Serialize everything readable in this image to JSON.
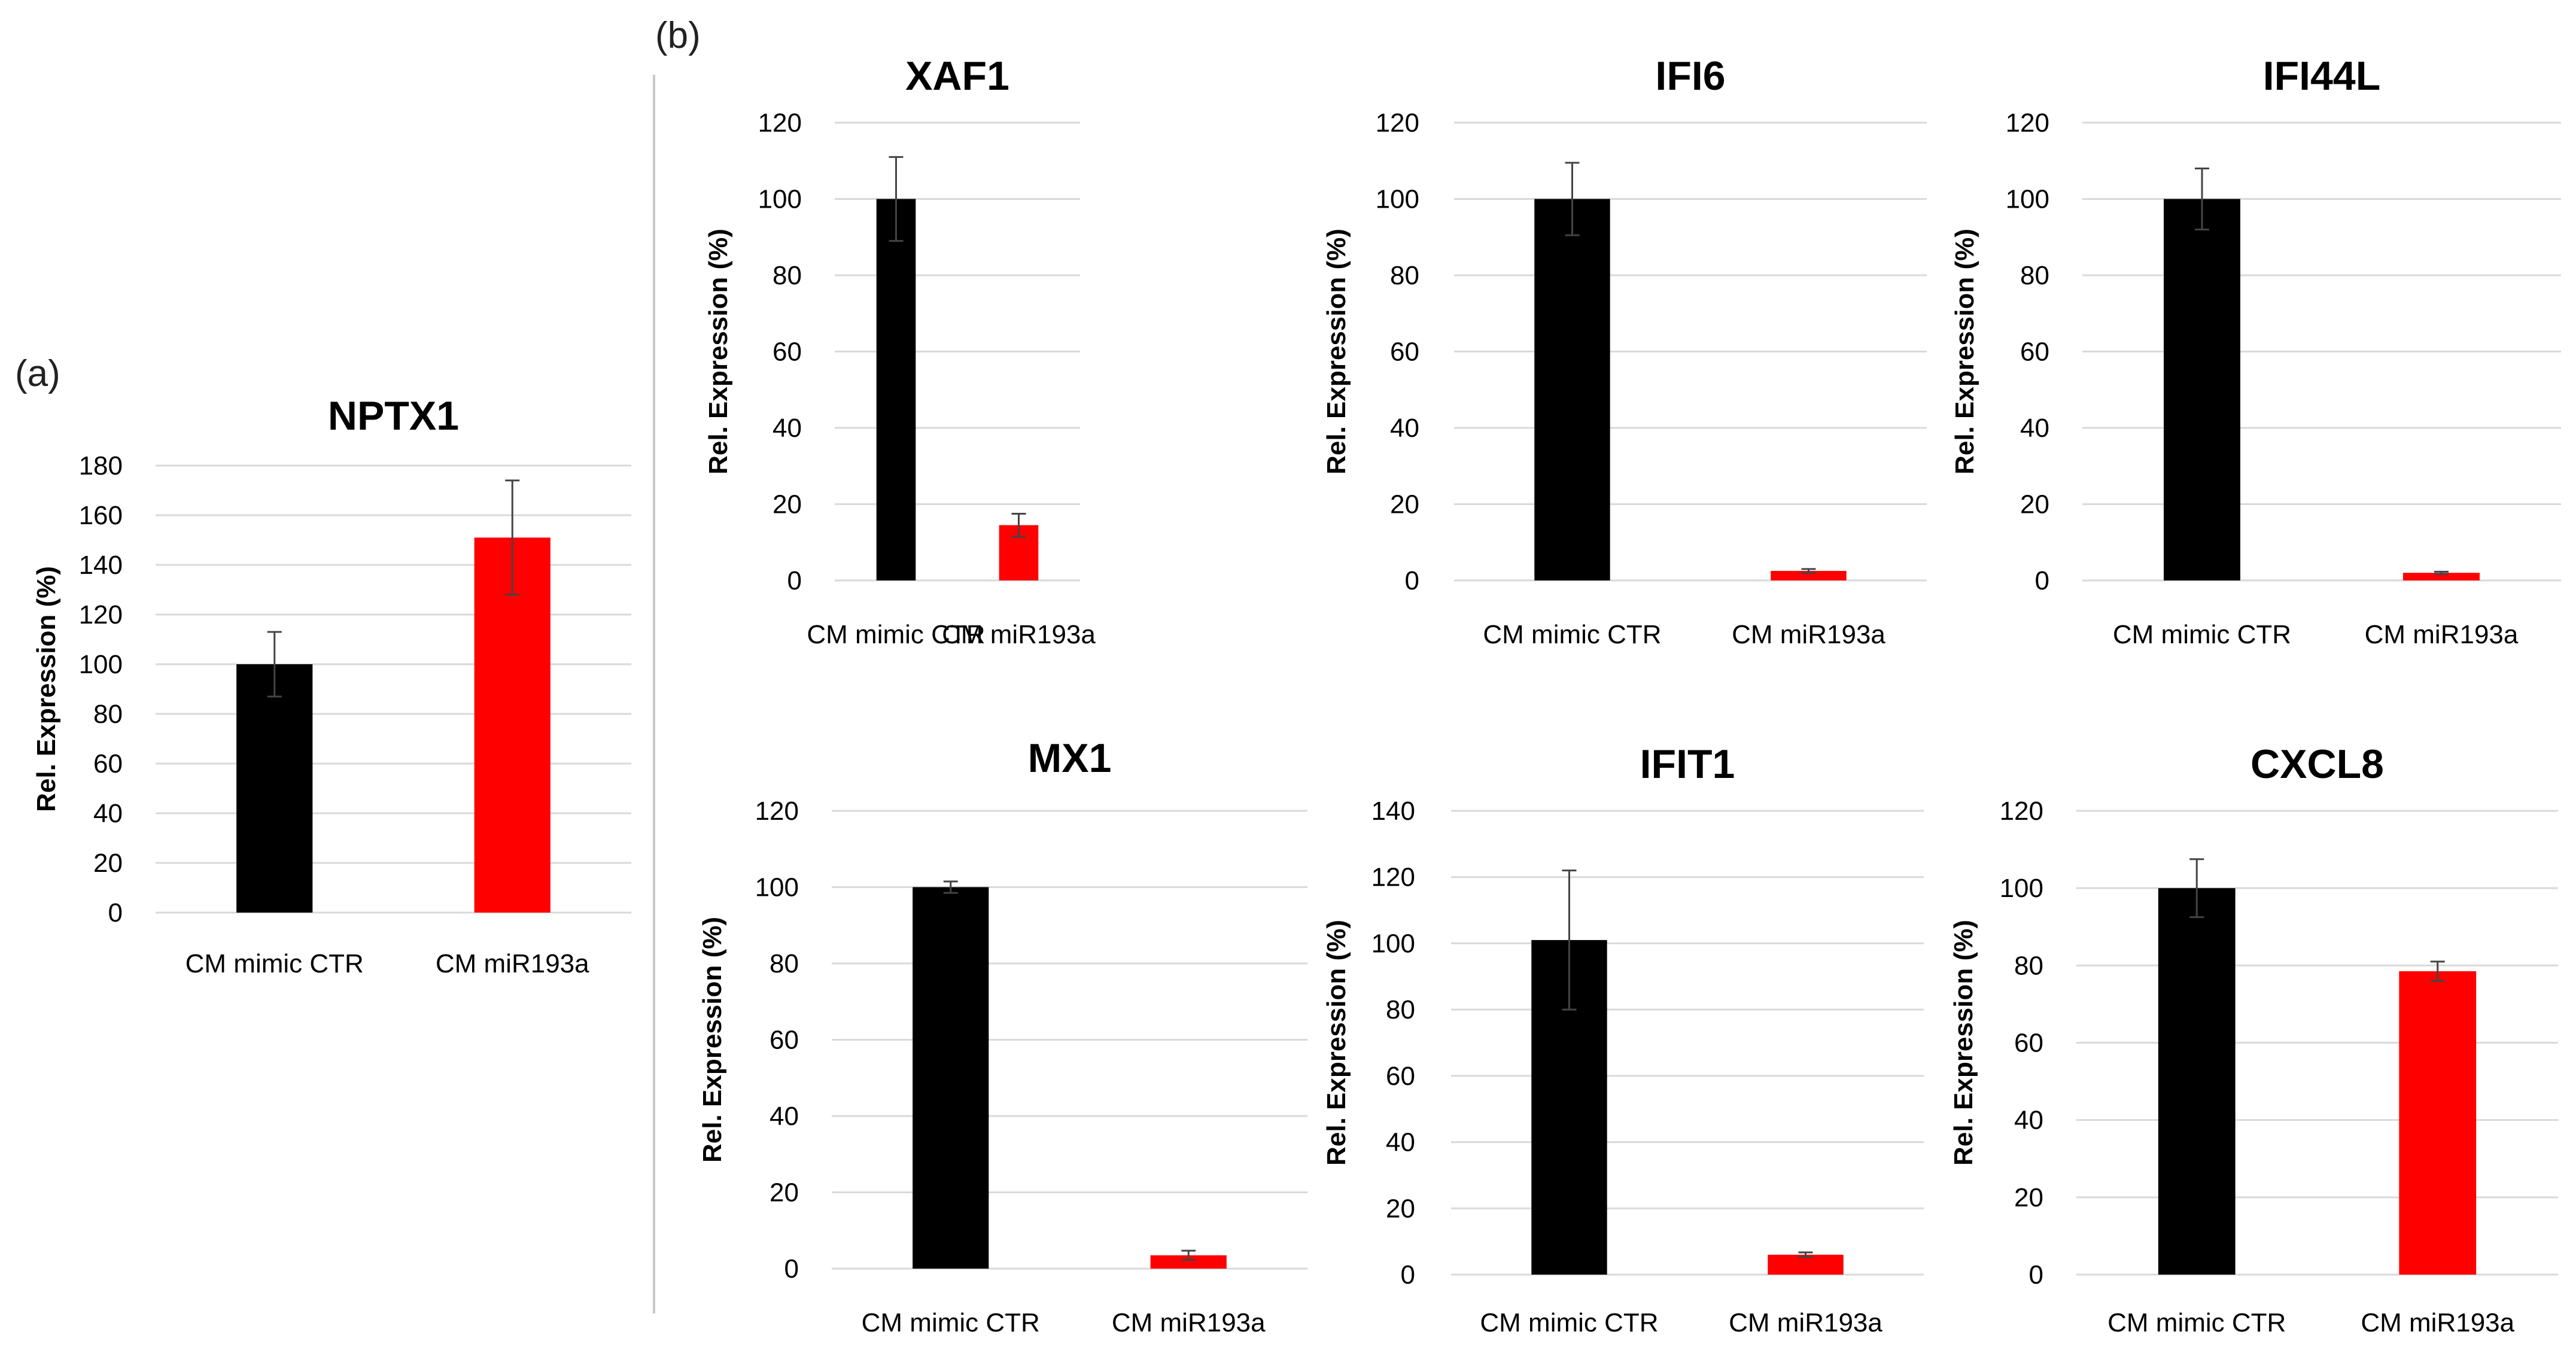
{
  "figure": {
    "panel_labels": [
      "(a)",
      "(b)"
    ],
    "colors": {
      "control": "#000000",
      "treatment": "#ff0000",
      "grid": "#d9d9d9",
      "error": "#444444"
    }
  },
  "chart_data": [
    {
      "type": "bar",
      "panel": "(a)",
      "title": "NPTX1",
      "xlabel": "",
      "ylabel": "Rel. Expression (%)",
      "categories": [
        "CM mimic CTR",
        "CM miR193a"
      ],
      "values": [
        100,
        151
      ],
      "errors": [
        13,
        23
      ],
      "ylim": [
        0,
        180
      ],
      "yticks": [
        0,
        20,
        40,
        60,
        80,
        100,
        120,
        140,
        160,
        180
      ],
      "bar_colors": [
        "#000000",
        "#ff0000"
      ],
      "grid": true
    },
    {
      "type": "bar",
      "panel": "(b)",
      "title": "XAF1",
      "xlabel": "",
      "ylabel": "Rel. Expression (%)",
      "categories": [
        "CM mimic CTR",
        "CM miR193a"
      ],
      "values": [
        100,
        14.5
      ],
      "errors": [
        11,
        3
      ],
      "ylim": [
        0,
        120
      ],
      "yticks": [
        0,
        20,
        40,
        60,
        80,
        100,
        120
      ],
      "bar_colors": [
        "#000000",
        "#ff0000"
      ],
      "grid": true
    },
    {
      "type": "bar",
      "panel": "(b)",
      "title": "IFI6",
      "xlabel": "",
      "ylabel": "Rel. Expression (%)",
      "categories": [
        "CM mimic CTR",
        "CM miR193a"
      ],
      "values": [
        100,
        2.5
      ],
      "errors": [
        9.5,
        0.5
      ],
      "ylim": [
        0,
        120
      ],
      "yticks": [
        0,
        20,
        40,
        60,
        80,
        100,
        120
      ],
      "bar_colors": [
        "#000000",
        "#ff0000"
      ],
      "grid": true
    },
    {
      "type": "bar",
      "panel": "(b)",
      "title": "IFI44L",
      "xlabel": "",
      "ylabel": "Rel. Expression (%)",
      "categories": [
        "CM mimic CTR",
        "CM miR193a"
      ],
      "values": [
        100,
        2
      ],
      "errors": [
        8,
        0.3
      ],
      "ylim": [
        0,
        120
      ],
      "yticks": [
        0,
        20,
        40,
        60,
        80,
        100,
        120
      ],
      "bar_colors": [
        "#000000",
        "#ff0000"
      ],
      "grid": true
    },
    {
      "type": "bar",
      "panel": "(b)",
      "title": "MX1",
      "xlabel": "",
      "ylabel": "Rel. Expression (%)",
      "categories": [
        "CM mimic CTR",
        "CM miR193a"
      ],
      "values": [
        100,
        3.5
      ],
      "errors": [
        1.5,
        1.2
      ],
      "ylim": [
        0,
        120
      ],
      "yticks": [
        0,
        20,
        40,
        60,
        80,
        100,
        120
      ],
      "bar_colors": [
        "#000000",
        "#ff0000"
      ],
      "grid": true
    },
    {
      "type": "bar",
      "panel": "(b)",
      "title": "IFIT1",
      "xlabel": "",
      "ylabel": "Rel. Expression (%)",
      "categories": [
        "CM mimic CTR",
        "CM miR193a"
      ],
      "values": [
        101,
        6
      ],
      "errors": [
        21,
        0.7
      ],
      "ylim": [
        0,
        140
      ],
      "yticks": [
        0,
        20,
        40,
        60,
        80,
        100,
        120,
        140
      ],
      "bar_colors": [
        "#000000",
        "#ff0000"
      ],
      "grid": true
    },
    {
      "type": "bar",
      "panel": "(b)",
      "title": "CXCL8",
      "xlabel": "",
      "ylabel": "Rel. Expression (%)",
      "categories": [
        "CM mimic CTR",
        "CM miR193a"
      ],
      "values": [
        100,
        78.5
      ],
      "errors": [
        7.5,
        2.5
      ],
      "ylim": [
        0,
        120
      ],
      "yticks": [
        0,
        20,
        40,
        60,
        80,
        100,
        120
      ],
      "bar_colors": [
        "#000000",
        "#ff0000"
      ],
      "grid": true
    }
  ]
}
